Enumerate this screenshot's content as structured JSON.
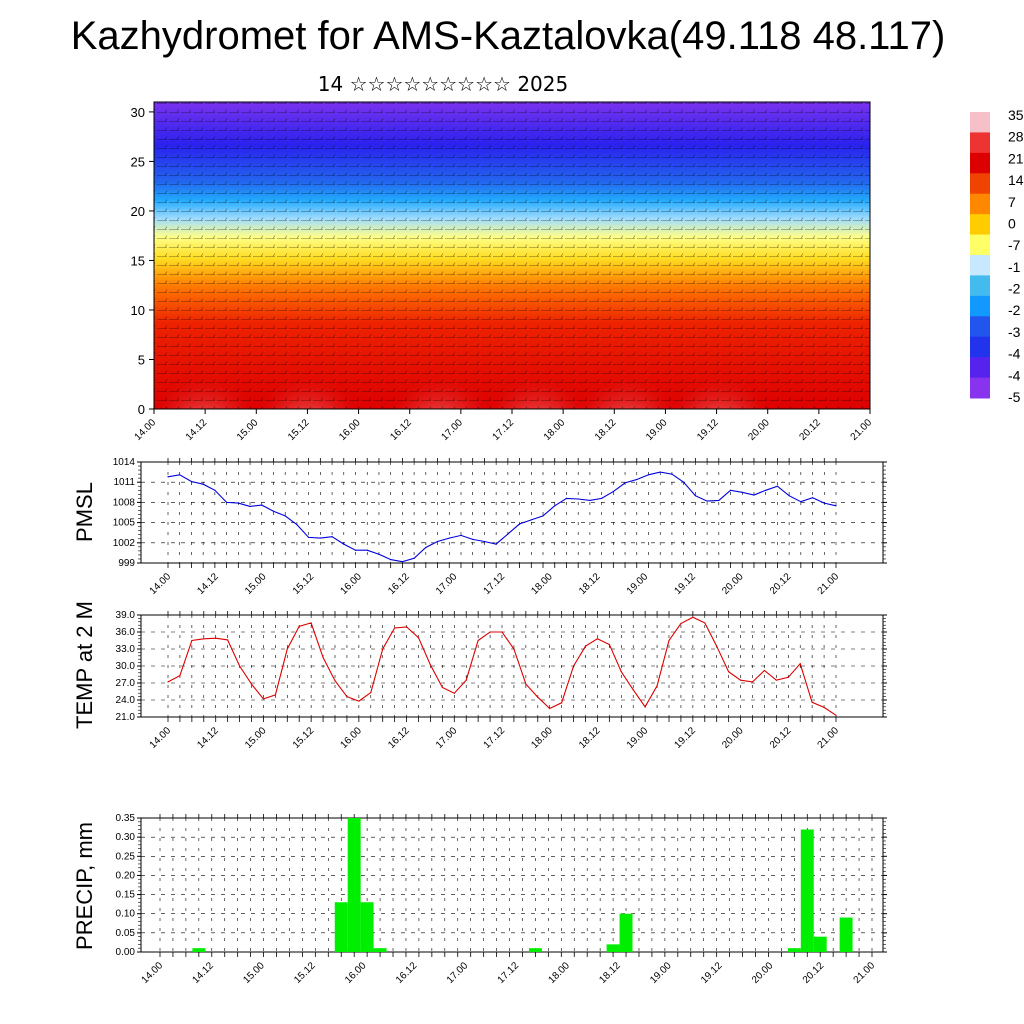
{
  "title": "Kazhydromet for AMS-Kaztalovka(49.118 48.117)",
  "subtitle": "14 ☆☆☆☆☆☆☆☆☆ 2025",
  "colors": {
    "pmsl": "#0000dd",
    "temp": "#dd0000",
    "precip": "#00ee00"
  },
  "chart_data": [
    {
      "type": "heatmap",
      "description_free": true,
      "x_ticks": [
        "14.00",
        "14.12",
        "15.00",
        "15.12",
        "16.00",
        "16.12",
        "17.00",
        "17.12",
        "18.00",
        "18.12",
        "19.00",
        "19.12",
        "20.00",
        "20.12",
        "21.00"
      ],
      "y_ticks": [
        "0",
        "5",
        "10",
        "15",
        "20",
        "25",
        "30"
      ],
      "ylim": [
        0,
        31
      ],
      "colorbar_labels": [
        "35",
        "28",
        "21",
        "14",
        "7",
        "0",
        "-7",
        "-1",
        "-2",
        "-2",
        "-3",
        "-4",
        "-4",
        "-5"
      ],
      "colorbar_colors": [
        "#f5c0c8",
        "#ee3333",
        "#dd0000",
        "#ee4400",
        "#ff8800",
        "#ffcc00",
        "#ffff66",
        "#c8e8ff",
        "#44bbee",
        "#1199ff",
        "#2255ee",
        "#2233ee",
        "#5522ee",
        "#8833ee"
      ]
    },
    {
      "type": "line",
      "ylabel": "PMSL",
      "ylim": [
        999,
        1014
      ],
      "y_ticks": [
        "1014",
        "1011",
        "1008",
        "1005",
        "1002",
        "999"
      ],
      "x_ticks": [
        "14.00",
        "14.12",
        "15.00",
        "15.12",
        "16.00",
        "16.12",
        "17.00",
        "17.12",
        "18.00",
        "18.12",
        "19.00",
        "19.12",
        "20.00",
        "20.12",
        "21.00"
      ],
      "series": [
        {
          "values": [
            1011.8,
            1012.1,
            1011.1,
            1010.7,
            1009.8,
            1008.0,
            1007.9,
            1007.4,
            1007.6,
            1006.7,
            1006.0,
            1004.7,
            1002.8,
            1002.7,
            1002.9,
            1001.8,
            1000.9,
            1000.9,
            1000.3,
            999.5,
            999.2,
            999.7,
            1001.3,
            1002.2,
            1002.7,
            1003.1,
            1002.5,
            1002.2,
            1001.8,
            1003.3,
            1004.8,
            1005.4,
            1006.0,
            1007.5,
            1008.6,
            1008.5,
            1008.3,
            1008.6,
            1009.6,
            1010.9,
            1011.4,
            1012.1,
            1012.5,
            1012.2,
            1011.0,
            1009.0,
            1008.2,
            1008.3,
            1009.8,
            1009.5,
            1009.1,
            1009.8,
            1010.4,
            1009.0,
            1008.1,
            1008.7,
            1007.9,
            1007.5
          ]
        }
      ]
    },
    {
      "type": "line",
      "ylabel": "TEMP at 2 M",
      "ylim": [
        21,
        39
      ],
      "y_ticks": [
        "39.0",
        "36.0",
        "33.0",
        "30.0",
        "27.0",
        "24.0",
        "21.0"
      ],
      "x_ticks": [
        "14.00",
        "14.12",
        "15.00",
        "15.12",
        "16.00",
        "16.12",
        "17.00",
        "17.12",
        "18.00",
        "18.12",
        "19.00",
        "19.12",
        "20.00",
        "20.12",
        "21.00"
      ],
      "series": [
        {
          "values": [
            27.2,
            28.3,
            34.5,
            34.8,
            34.9,
            34.6,
            30.0,
            26.8,
            24.2,
            24.9,
            33.0,
            37.0,
            37.6,
            31.5,
            27.4,
            24.6,
            23.8,
            25.3,
            33.0,
            36.7,
            36.9,
            35.0,
            30.2,
            26.2,
            25.2,
            27.5,
            34.5,
            36.0,
            36.0,
            33.0,
            26.8,
            24.5,
            22.5,
            23.5,
            30.0,
            33.5,
            34.8,
            33.8,
            29.0,
            25.8,
            22.8,
            26.5,
            34.5,
            37.5,
            38.6,
            37.6,
            33.5,
            29.0,
            27.5,
            27.2,
            29.2,
            27.5,
            28.0,
            30.4,
            23.6,
            22.7,
            21.3
          ]
        }
      ]
    },
    {
      "type": "bar",
      "ylabel": "PRECIP, mm",
      "ylim": [
        0,
        0.35
      ],
      "y_ticks": [
        "0.35",
        "0.30",
        "0.25",
        "0.20",
        "0.15",
        "0.10",
        "0.05",
        "0.00"
      ],
      "x_ticks": [
        "14.00",
        "14.12",
        "15.00",
        "15.12",
        "16.00",
        "16.12",
        "17.00",
        "17.12",
        "18.00",
        "18.12",
        "19.00",
        "19.12",
        "20.00",
        "20.12",
        "21.00"
      ],
      "series": [
        {
          "values": [
            0,
            0,
            0,
            0.01,
            0,
            0,
            0,
            0,
            0,
            0,
            0,
            0,
            0,
            0,
            0.13,
            0.35,
            0.13,
            0.01,
            0,
            0,
            0,
            0,
            0,
            0,
            0,
            0,
            0,
            0,
            0,
            0.01,
            0,
            0,
            0,
            0,
            0,
            0.02,
            0.1,
            0,
            0,
            0,
            0,
            0,
            0,
            0,
            0,
            0,
            0,
            0,
            0,
            0.01,
            0.32,
            0.04,
            0,
            0.09,
            0,
            0
          ]
        }
      ]
    }
  ]
}
